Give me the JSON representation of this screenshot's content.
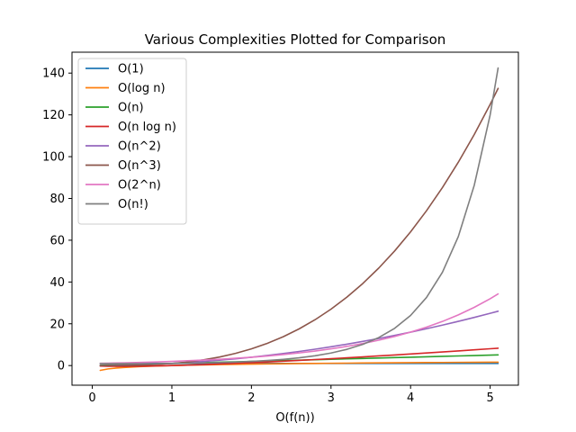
{
  "chart_data": {
    "type": "line",
    "title": "Various Complexities Plotted for Comparison",
    "xlabel": "O(f(n))",
    "ylabel": "",
    "xlim": [
      -0.255,
      5.355
    ],
    "ylim": [
      -9.4,
      150.0
    ],
    "xticks": [
      0,
      1,
      2,
      3,
      4,
      5
    ],
    "yticks": [
      0,
      20,
      40,
      60,
      80,
      100,
      120,
      140
    ],
    "grid": false,
    "legend_position": "top-left",
    "x": [
      0.1,
      0.2,
      0.3,
      0.4,
      0.5,
      0.6,
      0.8,
      1.0,
      1.2,
      1.4,
      1.6,
      1.8,
      2.0,
      2.2,
      2.4,
      2.6,
      2.8,
      3.0,
      3.2,
      3.4,
      3.6,
      3.8,
      4.0,
      4.2,
      4.4,
      4.6,
      4.8,
      5.0,
      5.1
    ],
    "series": [
      {
        "name": "O(1)",
        "color": "#1f77b4",
        "values": [
          1.0,
          1.0,
          1.0,
          1.0,
          1.0,
          1.0,
          1.0,
          1.0,
          1.0,
          1.0,
          1.0,
          1.0,
          1.0,
          1.0,
          1.0,
          1.0,
          1.0,
          1.0,
          1.0,
          1.0,
          1.0,
          1.0,
          1.0,
          1.0,
          1.0,
          1.0,
          1.0,
          1.0,
          1.0
        ]
      },
      {
        "name": "O(log n)",
        "color": "#ff7f0e",
        "values": [
          -2.3,
          -1.6,
          -1.2,
          -0.92,
          -0.69,
          -0.51,
          -0.22,
          0.0,
          0.18,
          0.34,
          0.47,
          0.59,
          0.69,
          0.79,
          0.88,
          0.96,
          1.03,
          1.1,
          1.16,
          1.22,
          1.28,
          1.34,
          1.39,
          1.44,
          1.48,
          1.53,
          1.57,
          1.61,
          1.63
        ]
      },
      {
        "name": "O(n)",
        "color": "#2ca02c",
        "values": [
          0.1,
          0.2,
          0.3,
          0.4,
          0.5,
          0.6,
          0.8,
          1.0,
          1.2,
          1.4,
          1.6,
          1.8,
          2.0,
          2.2,
          2.4,
          2.6,
          2.8,
          3.0,
          3.2,
          3.4,
          3.6,
          3.8,
          4.0,
          4.2,
          4.4,
          4.6,
          4.8,
          5.0,
          5.1
        ]
      },
      {
        "name": "O(n log n)",
        "color": "#d62728",
        "values": [
          -0.23,
          -0.32,
          -0.36,
          -0.37,
          -0.35,
          -0.31,
          -0.18,
          0.0,
          0.22,
          0.47,
          0.75,
          1.06,
          1.39,
          1.73,
          2.1,
          2.48,
          2.88,
          3.3,
          3.72,
          4.16,
          4.61,
          5.07,
          5.55,
          6.03,
          6.52,
          7.02,
          7.53,
          8.05,
          8.31
        ]
      },
      {
        "name": "O(n^2)",
        "color": "#9467bd",
        "values": [
          0.01,
          0.04,
          0.09,
          0.16,
          0.25,
          0.36,
          0.64,
          1.0,
          1.44,
          1.96,
          2.56,
          3.24,
          4.0,
          4.84,
          5.76,
          6.76,
          7.84,
          9.0,
          10.24,
          11.56,
          12.96,
          14.44,
          16.0,
          17.64,
          19.36,
          21.16,
          23.04,
          25.0,
          26.01
        ]
      },
      {
        "name": "O(n^3)",
        "color": "#8c564b",
        "values": [
          0.001,
          0.008,
          0.027,
          0.064,
          0.125,
          0.216,
          0.512,
          1.0,
          1.728,
          2.744,
          4.096,
          5.832,
          8.0,
          10.65,
          13.82,
          17.58,
          21.95,
          27.0,
          32.77,
          39.3,
          46.66,
          54.87,
          64.0,
          74.09,
          85.18,
          97.34,
          110.59,
          125.0,
          132.65
        ]
      },
      {
        "name": "O(2^n)",
        "color": "#e377c2",
        "values": [
          1.07,
          1.15,
          1.23,
          1.32,
          1.41,
          1.52,
          1.74,
          2.0,
          2.3,
          2.64,
          3.03,
          3.48,
          4.0,
          4.59,
          5.28,
          6.06,
          6.96,
          8.0,
          9.19,
          10.56,
          12.13,
          13.93,
          16.0,
          18.38,
          21.11,
          24.25,
          27.86,
          32.0,
          34.3
        ]
      },
      {
        "name": "O(n!)",
        "color": "#7f7f7f",
        "values": [
          0.95,
          0.92,
          0.9,
          0.89,
          0.89,
          0.89,
          0.93,
          1.0,
          1.1,
          1.24,
          1.43,
          1.68,
          2.0,
          2.42,
          2.98,
          3.71,
          4.69,
          6.0,
          7.76,
          10.14,
          13.38,
          17.84,
          24.0,
          32.58,
          44.65,
          61.77,
          86.27,
          120.0,
          142.45
        ]
      }
    ]
  }
}
